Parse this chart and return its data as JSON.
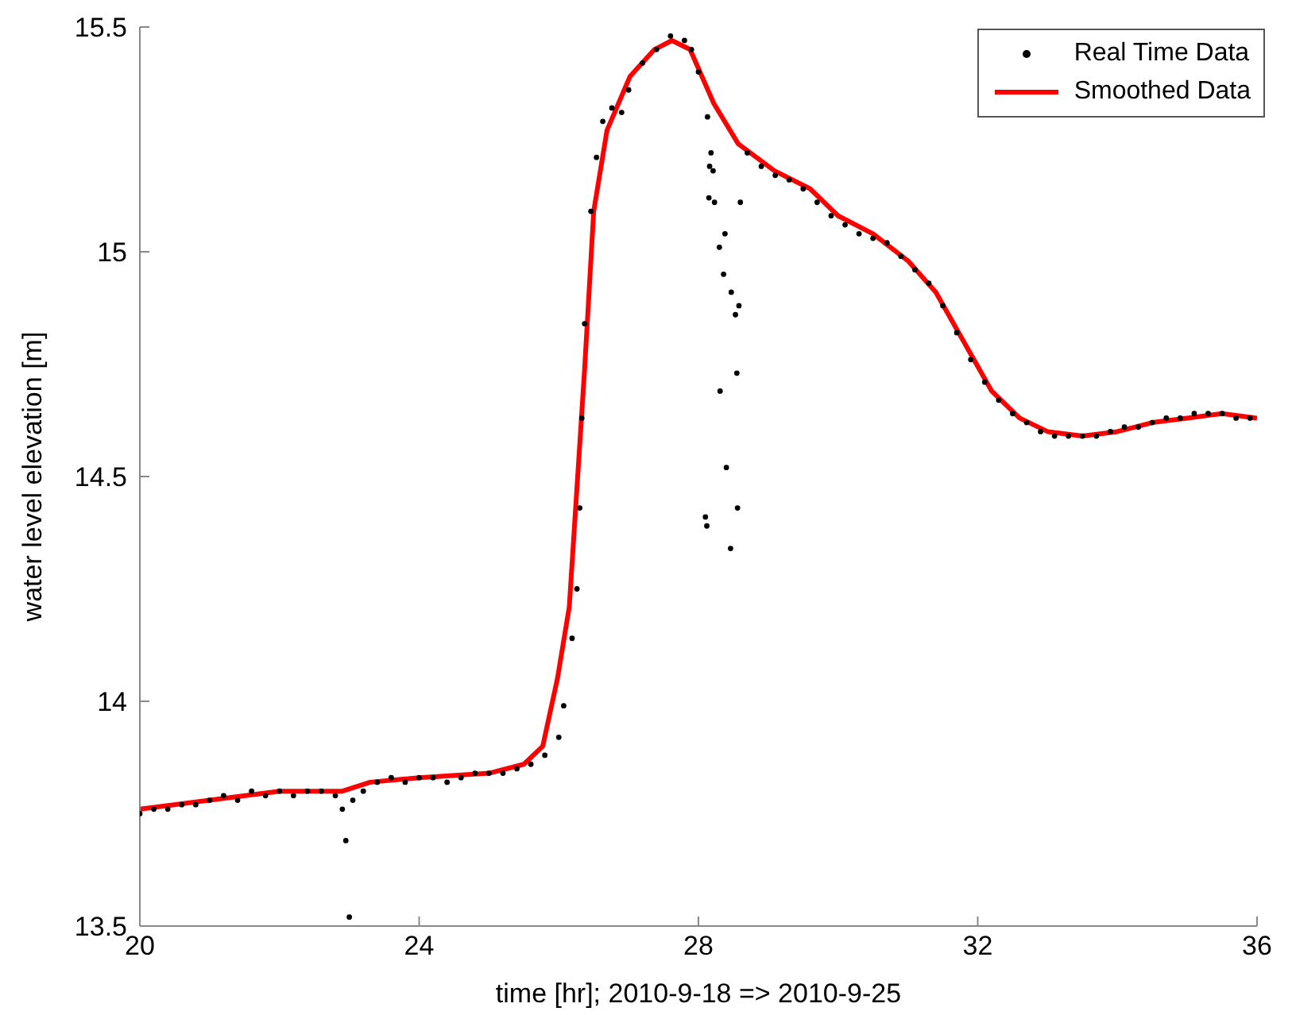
{
  "chart_data": {
    "type": "scatter",
    "xlabel": "time [hr]; 2010-9-18 => 2010-9-25",
    "ylabel": "water level elevation [m]",
    "xlim": [
      20,
      36
    ],
    "xticks": [
      20,
      24,
      28,
      32,
      36
    ],
    "ylim": [
      13.5,
      15.5
    ],
    "yticks": [
      13.5,
      14,
      14.5,
      15,
      15.5
    ],
    "grid": false,
    "legend": "top right",
    "series": [
      {
        "name": "Real Time Data",
        "type": "scatter",
        "marker": "circle",
        "color": "#000000",
        "x": [
          20.0,
          20.2,
          20.4,
          20.6,
          20.8,
          21.0,
          21.2,
          21.4,
          21.6,
          21.8,
          22.0,
          22.2,
          22.4,
          22.6,
          22.8,
          22.9,
          22.95,
          23.0,
          23.05,
          23.2,
          23.4,
          23.6,
          23.8,
          24.0,
          24.2,
          24.4,
          24.6,
          24.8,
          25.0,
          25.2,
          25.4,
          25.6,
          25.8,
          26.0,
          26.07,
          26.19,
          26.26,
          26.3,
          26.33,
          26.37,
          26.46,
          26.54,
          26.63,
          26.76,
          26.9,
          27.0,
          27.2,
          27.4,
          27.6,
          27.8,
          27.9,
          28.0,
          28.13,
          28.18,
          28.16,
          28.21,
          28.15,
          28.23,
          28.6,
          28.38,
          28.3,
          28.36,
          28.47,
          28.58,
          28.53,
          28.55,
          28.31,
          28.4,
          28.56,
          28.46,
          28.1,
          28.12,
          28.7,
          28.9,
          29.1,
          29.3,
          29.5,
          29.7,
          29.9,
          30.1,
          30.3,
          30.5,
          30.7,
          30.9,
          31.1,
          31.3,
          31.5,
          31.7,
          31.9,
          32.1,
          32.3,
          32.5,
          32.7,
          32.9,
          33.1,
          33.3,
          33.5,
          33.7,
          33.9,
          34.1,
          34.3,
          34.5,
          34.7,
          34.9,
          35.1,
          35.3,
          35.5,
          35.7,
          35.9
        ],
        "values": [
          13.75,
          13.76,
          13.76,
          13.77,
          13.77,
          13.78,
          13.79,
          13.78,
          13.8,
          13.79,
          13.8,
          13.79,
          13.8,
          13.8,
          13.79,
          13.76,
          13.69,
          13.52,
          13.78,
          13.8,
          13.82,
          13.83,
          13.82,
          13.83,
          13.83,
          13.82,
          13.83,
          13.84,
          13.84,
          13.84,
          13.85,
          13.86,
          13.88,
          13.92,
          13.99,
          14.14,
          14.25,
          14.43,
          14.63,
          14.84,
          15.09,
          15.21,
          15.29,
          15.32,
          15.31,
          15.36,
          15.42,
          15.45,
          15.48,
          15.47,
          15.45,
          15.4,
          15.3,
          15.22,
          15.19,
          15.18,
          15.12,
          15.11,
          15.11,
          15.04,
          15.01,
          14.95,
          14.91,
          14.88,
          14.86,
          14.73,
          14.69,
          14.52,
          14.43,
          14.34,
          14.41,
          14.39,
          15.22,
          15.19,
          15.17,
          15.16,
          15.14,
          15.11,
          15.08,
          15.06,
          15.04,
          15.03,
          15.02,
          14.99,
          14.96,
          14.93,
          14.88,
          14.82,
          14.76,
          14.71,
          14.67,
          14.64,
          14.62,
          14.6,
          14.59,
          14.59,
          14.59,
          14.59,
          14.6,
          14.61,
          14.61,
          14.62,
          14.63,
          14.63,
          14.64,
          14.64,
          14.64,
          14.63,
          14.63
        ]
      },
      {
        "name": "Smoothed Data",
        "type": "line",
        "marker": "none",
        "line_style": "solid",
        "color": "#ff0000",
        "x": [
          20,
          21,
          22,
          22.9,
          23.3,
          24,
          25,
          25.5,
          25.77,
          25.98,
          26.15,
          26.37,
          26.5,
          26.69,
          27.02,
          27.37,
          27.62,
          27.88,
          28.22,
          28.57,
          29.09,
          29.6,
          30.0,
          30.5,
          31.0,
          31.4,
          31.8,
          32.2,
          32.6,
          33.0,
          33.5,
          34.0,
          34.5,
          35.0,
          35.5,
          36.0
        ],
        "values": [
          13.76,
          13.78,
          13.8,
          13.8,
          13.82,
          13.83,
          13.84,
          13.86,
          13.9,
          14.05,
          14.21,
          14.74,
          15.09,
          15.27,
          15.39,
          15.45,
          15.47,
          15.45,
          15.33,
          15.24,
          15.18,
          15.14,
          15.08,
          15.04,
          14.98,
          14.91,
          14.8,
          14.69,
          14.63,
          14.6,
          14.59,
          14.6,
          14.62,
          14.63,
          14.64,
          14.63
        ]
      }
    ]
  }
}
